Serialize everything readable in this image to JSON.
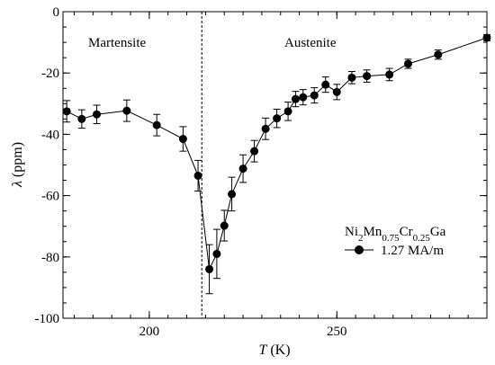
{
  "chart_data": {
    "type": "line",
    "xlabel_var": "T",
    "xlabel_unit": " (K)",
    "ylabel_var": "λ",
    "ylabel_unit": " (ppm)",
    "xlim": [
      177,
      290
    ],
    "ylim": [
      -100,
      0
    ],
    "x_ticks": [
      200,
      250
    ],
    "y_ticks": [
      -100,
      -80,
      -60,
      -40,
      -20,
      0
    ],
    "x_ticks_minor_step": 5,
    "y_ticks_minor_step": 5,
    "transition_x": 214,
    "region_labels": {
      "left": "Martensite",
      "right": "Austenite"
    },
    "legend": {
      "compound": [
        {
          "text": "Ni",
          "sub": false
        },
        {
          "text": "2",
          "sub": true
        },
        {
          "text": "Mn",
          "sub": false
        },
        {
          "text": "0.75",
          "sub": true
        },
        {
          "text": "Cr",
          "sub": false
        },
        {
          "text": "0.25",
          "sub": true
        },
        {
          "text": "Ga",
          "sub": false
        }
      ],
      "series_label": "1.27 MA/m"
    },
    "colors": {
      "marker": "#000000",
      "line": "#000000"
    },
    "series": [
      {
        "x": [
          178,
          182,
          186,
          194,
          202,
          209,
          213,
          216,
          218,
          220,
          222,
          225,
          228,
          231,
          234,
          237,
          239,
          241,
          244,
          247,
          250,
          254,
          258,
          264,
          269,
          277,
          290
        ],
        "y": [
          -32.5,
          -35,
          -33.5,
          -32.3,
          -37,
          -41.5,
          -53.5,
          -84,
          -79,
          -69.8,
          -59.5,
          -51.2,
          -45.5,
          -38.2,
          -34.8,
          -32.5,
          -28.5,
          -27.9,
          -27.3,
          -23.8,
          -26.2,
          -21.5,
          -21,
          -20.5,
          -17,
          -14,
          -8.5
        ],
        "err": [
          3.5,
          3,
          3,
          3.5,
          3.5,
          4,
          5,
          8,
          8,
          5,
          5.5,
          4.5,
          3.5,
          3.5,
          3,
          3,
          2.5,
          2.5,
          2.5,
          2.5,
          2.5,
          2,
          2,
          2,
          1.5,
          1.5,
          1
        ]
      }
    ]
  }
}
